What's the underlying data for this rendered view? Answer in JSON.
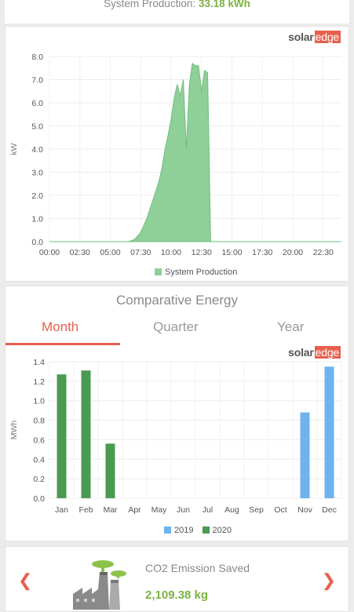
{
  "header": {
    "label": "System Production:",
    "value": "33.18 kWh"
  },
  "logo": {
    "solar": "solar",
    "edge": "edge"
  },
  "production_chart": {
    "legend": "System Production",
    "color": "#8fcf98",
    "stroke_color": "#6fbf7c",
    "chart_data": {
      "type": "area",
      "ylabel": "kW",
      "xlabel": "",
      "ylim": [
        0,
        8
      ],
      "yticks": [
        "0.0",
        "1.0",
        "2.0",
        "3.0",
        "4.0",
        "5.0",
        "6.0",
        "7.0",
        "8.0"
      ],
      "xticks": [
        "00:00",
        "02:30",
        "05:00",
        "07:30",
        "10:00",
        "12:30",
        "15:00",
        "17:30",
        "20:00",
        "22:30"
      ],
      "series": [
        {
          "name": "System Production",
          "x": [
            "00:00",
            "06:30",
            "07:00",
            "07:30",
            "08:00",
            "08:30",
            "09:00",
            "09:15",
            "09:30",
            "09:45",
            "10:00",
            "10:15",
            "10:30",
            "10:45",
            "11:00",
            "11:15",
            "11:30",
            "11:45",
            "12:00",
            "12:15",
            "12:30",
            "12:45",
            "13:00",
            "13:15",
            "13:30",
            "14:00",
            "24:00"
          ],
          "y": [
            0,
            0,
            0.1,
            0.4,
            1.0,
            1.8,
            2.6,
            3.2,
            4.0,
            4.6,
            5.3,
            6.2,
            6.8,
            6.3,
            7.0,
            4.0,
            6.8,
            7.7,
            7.6,
            7.6,
            6.5,
            7.4,
            7.3,
            0,
            0,
            0,
            0
          ]
        }
      ]
    }
  },
  "comparative": {
    "title": "Comparative Energy",
    "tabs": [
      "Month",
      "Quarter",
      "Year"
    ],
    "active_tab": 0,
    "colors": {
      "2019": "#6db3ee",
      "2020": "#4a9a52"
    },
    "chart_data": {
      "type": "bar",
      "ylabel": "MWh",
      "ylim": [
        0,
        1.4
      ],
      "yticks": [
        "0.0",
        "0.2",
        "0.4",
        "0.6",
        "0.8",
        "1.0",
        "1.2",
        "1.4"
      ],
      "categories": [
        "Jan",
        "Feb",
        "Mar",
        "Apr",
        "May",
        "Jun",
        "Jul",
        "Aug",
        "Sep",
        "Oct",
        "Nov",
        "Dec"
      ],
      "series": [
        {
          "name": "2019",
          "values": [
            null,
            null,
            null,
            null,
            null,
            null,
            null,
            null,
            null,
            null,
            0.88,
            1.35
          ]
        },
        {
          "name": "2020",
          "values": [
            1.27,
            1.31,
            0.56,
            null,
            null,
            null,
            null,
            null,
            null,
            null,
            null,
            null
          ]
        }
      ]
    }
  },
  "co2": {
    "title": "CO2 Emission Saved",
    "value": "2,109.38 kg",
    "prev_icon": "chevron-left-icon",
    "next_icon": "chevron-right-icon",
    "icon": "factory-icon"
  }
}
